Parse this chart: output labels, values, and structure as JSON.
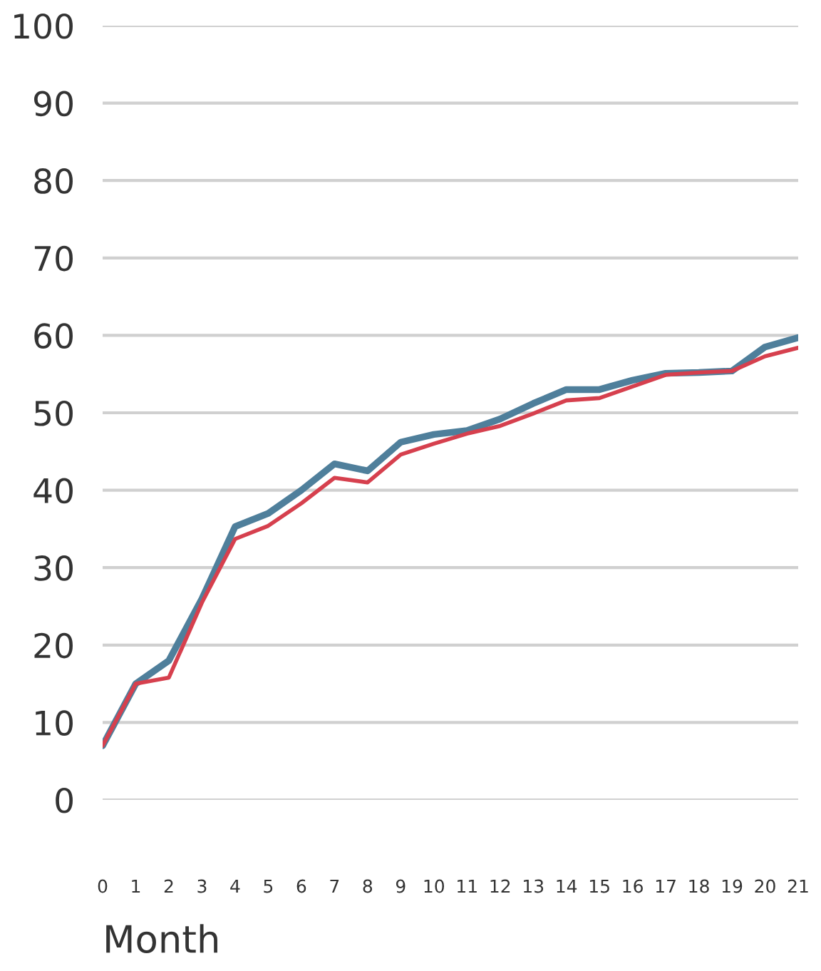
{
  "chart_data": {
    "type": "line",
    "xlabel": "Month",
    "x": [
      0,
      1,
      2,
      3,
      4,
      5,
      6,
      7,
      8,
      9,
      10,
      11,
      12,
      13,
      14,
      15,
      16,
      17,
      18,
      19,
      20,
      21
    ],
    "series": [
      {
        "color": "#4f7f9b",
        "values": [
          7,
          15,
          18,
          26,
          35.3,
          37,
          40,
          43.4,
          42.5,
          46.2,
          47.2,
          47.7,
          49.2,
          51.2,
          53,
          53,
          54.2,
          55.1,
          55.2,
          55.4,
          58.5,
          59.7
        ]
      },
      {
        "color": "#d6404e",
        "values": [
          7,
          15,
          15.8,
          25.5,
          33.7,
          35.4,
          38.3,
          41.6,
          41,
          44.6,
          46,
          47.3,
          48.3,
          49.9,
          51.6,
          51.9,
          53.4,
          54.9,
          55.2,
          55.4,
          57.3,
          58.4
        ]
      }
    ],
    "xlim": [
      0,
      21
    ],
    "xticks": [
      0,
      1,
      2,
      3,
      4,
      5,
      6,
      7,
      8,
      9,
      10,
      11,
      12,
      13,
      14,
      15,
      16,
      17,
      18,
      19,
      20,
      21
    ],
    "ylim": [
      0,
      100
    ],
    "yticks": [
      0,
      10,
      20,
      30,
      40,
      50,
      60,
      70,
      80,
      90,
      100
    ],
    "grid": "y",
    "marker": "none",
    "line_style": "solid"
  }
}
